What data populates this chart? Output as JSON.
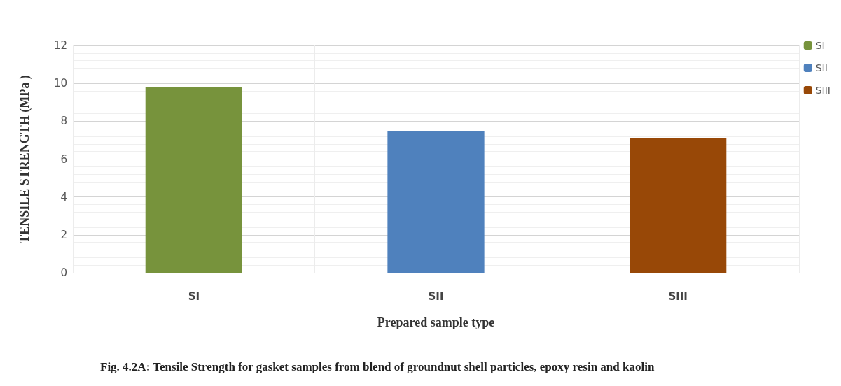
{
  "chart_data": {
    "type": "bar",
    "title": "Fig. 4.2A: Tensile Strength for gasket samples from blend of groundnut shell particles, epoxy resin and kaolin",
    "xlabel": "Prepared sample type",
    "ylabel": "TENSILE STRENGTH (MPa )",
    "categories": [
      "SI",
      "SII",
      "SIII"
    ],
    "series": [
      {
        "name": "SI",
        "color": "#77933c",
        "values": [
          9.8,
          null,
          null
        ]
      },
      {
        "name": "SII",
        "color": "#4f81bd",
        "values": [
          null,
          7.5,
          null
        ]
      },
      {
        "name": "SIII",
        "color": "#984807",
        "values": [
          null,
          null,
          7.1
        ]
      }
    ],
    "ylim": [
      0,
      12
    ],
    "yticks": [
      0,
      2,
      4,
      6,
      8,
      10,
      12
    ],
    "grid": true,
    "legend": "top right"
  }
}
